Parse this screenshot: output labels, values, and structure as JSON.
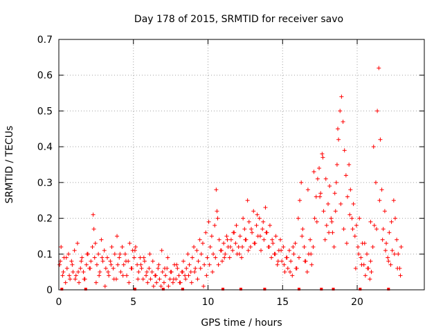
{
  "chart_data": {
    "type": "scatter",
    "title": "Day 178 of 2015, SRMTID for receiver savo",
    "xlabel": "GPS time / hours",
    "ylabel": "SRMTID / TECUs",
    "xlim": [
      0,
      24.5
    ],
    "ylim": [
      0,
      0.7
    ],
    "xticks": [
      0,
      5,
      10,
      15,
      20
    ],
    "yticks": [
      0,
      0.1,
      0.2,
      0.3,
      0.4,
      0.5,
      0.6,
      0.7
    ],
    "xtick_labels": [
      "0",
      "5",
      "10",
      "15",
      "20"
    ],
    "ytick_labels": [
      "0",
      "0.1",
      "0.2",
      "0.3",
      "0.4",
      "0.5",
      "0.6",
      "0.7"
    ],
    "grid": true,
    "legend": "none",
    "marker": "plus",
    "series": [
      {
        "name": "SRMTID",
        "color": "#ff0000",
        "x": [
          0.05,
          0.15,
          0.25,
          0.35,
          0.45,
          0.55,
          0.65,
          0.75,
          0.85,
          0.95,
          1.05,
          1.15,
          1.25,
          1.35,
          1.45,
          1.55,
          1.65,
          1.75,
          1.85,
          1.95,
          2.05,
          2.15,
          2.25,
          2.3,
          2.35,
          2.4,
          2.45,
          2.55,
          2.65,
          2.75,
          2.85,
          2.95,
          3.05,
          3.15,
          3.25,
          3.35,
          3.45,
          3.55,
          3.65,
          3.75,
          3.85,
          3.95,
          4.05,
          4.15,
          4.25,
          4.35,
          4.45,
          4.55,
          4.65,
          4.75,
          4.85,
          4.95,
          5.05,
          5.15,
          5.25,
          5.35,
          5.45,
          5.55,
          5.65,
          5.75,
          5.85,
          5.95,
          6.05,
          6.15,
          6.25,
          6.35,
          6.45,
          6.55,
          6.65,
          6.75,
          6.85,
          6.95,
          7.05,
          7.15,
          7.25,
          7.35,
          7.45,
          7.55,
          7.65,
          7.75,
          7.85,
          7.95,
          8.05,
          8.15,
          8.25,
          8.35,
          8.45,
          8.55,
          8.65,
          8.75,
          8.85,
          8.95,
          9.05,
          9.15,
          9.25,
          9.35,
          9.45,
          9.55,
          9.65,
          9.75,
          9.85,
          9.95,
          10.05,
          10.15,
          10.25,
          10.35,
          10.45,
          10.55,
          10.6,
          10.65,
          10.75,
          10.85,
          10.95,
          11.05,
          11.15,
          11.25,
          11.35,
          11.45,
          11.55,
          11.65,
          11.75,
          11.85,
          11.95,
          12.05,
          12.15,
          12.25,
          12.35,
          12.45,
          12.55,
          12.65,
          12.75,
          12.85,
          12.95,
          13.05,
          13.15,
          13.25,
          13.35,
          13.45,
          13.55,
          13.65,
          13.75,
          13.85,
          13.95,
          14.05,
          14.15,
          14.25,
          14.35,
          14.45,
          14.55,
          14.65,
          14.75,
          14.85,
          14.95,
          15.05,
          15.15,
          15.25,
          15.35,
          15.45,
          15.55,
          15.65,
          15.75,
          15.85,
          15.95,
          16.05,
          16.15,
          16.25,
          16.35,
          16.45,
          16.55,
          16.65,
          16.75,
          16.85,
          16.95,
          17.05,
          17.15,
          17.25,
          17.35,
          17.45,
          17.55,
          17.65,
          17.75,
          17.85,
          17.95,
          18.05,
          18.15,
          18.25,
          18.35,
          18.45,
          18.55,
          18.6,
          18.65,
          18.75,
          18.85,
          18.95,
          19.05,
          19.15,
          19.25,
          19.35,
          19.45,
          19.55,
          19.65,
          19.75,
          19.85,
          19.95,
          20.05,
          20.15,
          20.25,
          20.35,
          20.45,
          20.55,
          20.65,
          20.75,
          20.85,
          20.9,
          20.95,
          21.05,
          21.15,
          21.25,
          21.35,
          21.45,
          21.55,
          21.65,
          21.75,
          21.85,
          21.95,
          22.05,
          22.15,
          22.25,
          22.35,
          22.45,
          22.55,
          22.65,
          22.75,
          22.85,
          22.95,
          0.1,
          0.3,
          0.5,
          0.7,
          0.9,
          1.1,
          1.3,
          1.5,
          1.7,
          1.9,
          2.1,
          2.5,
          2.7,
          2.9,
          3.1,
          3.3,
          3.5,
          3.7,
          3.9,
          4.1,
          4.3,
          4.5,
          4.7,
          4.9,
          5.1,
          5.3,
          5.5,
          5.7,
          5.9,
          6.1,
          6.3,
          6.5,
          6.7,
          6.9,
          7.1,
          7.3,
          7.5,
          7.7,
          7.9,
          8.1,
          8.3,
          8.5,
          8.7,
          8.9,
          9.1,
          9.3,
          9.5,
          9.7,
          9.9,
          10.1,
          10.3,
          10.5,
          10.7,
          10.9,
          11.1,
          11.3,
          11.5,
          11.7,
          11.9,
          12.1,
          12.3,
          12.5,
          12.7,
          12.9,
          13.1,
          13.3,
          13.5,
          13.7,
          13.9,
          14.1,
          14.3,
          14.5,
          14.7,
          14.9,
          15.1,
          15.3,
          15.5,
          15.7,
          15.9,
          16.1,
          16.3,
          16.5,
          16.7,
          16.9,
          17.1,
          17.3,
          17.5,
          17.7,
          17.9,
          18.1,
          18.3,
          18.5,
          18.7,
          18.9,
          19.1,
          19.3,
          19.5,
          19.7,
          19.9,
          20.1,
          20.3,
          20.5,
          20.7,
          20.9,
          21.1,
          21.3,
          21.5,
          21.7,
          21.9,
          22.1,
          22.3,
          22.5,
          22.7,
          22.9
        ],
        "y": [
          0.07,
          0.12,
          0.04,
          0.09,
          0.02,
          0.06,
          0.1,
          0.03,
          0.08,
          0.05,
          0.11,
          0.04,
          0.13,
          0.02,
          0.06,
          0.09,
          0.05,
          0.03,
          0.07,
          0.1,
          0.06,
          0.08,
          0.12,
          0.21,
          0.17,
          0.09,
          0.13,
          0.07,
          0.1,
          0.05,
          0.14,
          0.08,
          0.11,
          0.06,
          0.09,
          0.04,
          0.08,
          0.12,
          0.06,
          0.1,
          0.03,
          0.07,
          0.09,
          0.05,
          0.12,
          0.07,
          0.1,
          0.04,
          0.08,
          0.13,
          0.06,
          0.11,
          0.09,
          0.12,
          0.07,
          0.05,
          0.09,
          0.06,
          0.03,
          0.08,
          0.04,
          0.02,
          0.06,
          0.03,
          0.05,
          0.01,
          0.04,
          0.02,
          0.06,
          0.03,
          0.01,
          0.05,
          0.02,
          0.04,
          0.06,
          0.01,
          0.03,
          0.05,
          0.02,
          0.07,
          0.03,
          0.06,
          0.04,
          0.02,
          0.05,
          0.08,
          0.04,
          0.06,
          0.1,
          0.07,
          0.05,
          0.09,
          0.12,
          0.06,
          0.11,
          0.08,
          0.14,
          0.1,
          0.13,
          0.07,
          0.16,
          0.09,
          0.19,
          0.12,
          0.15,
          0.1,
          0.18,
          0.28,
          0.22,
          0.2,
          0.14,
          0.11,
          0.08,
          0.13,
          0.1,
          0.15,
          0.12,
          0.09,
          0.14,
          0.11,
          0.16,
          0.13,
          0.1,
          0.12,
          0.15,
          0.09,
          0.2,
          0.17,
          0.14,
          0.25,
          0.19,
          0.12,
          0.16,
          0.22,
          0.13,
          0.18,
          0.15,
          0.2,
          0.11,
          0.17,
          0.14,
          0.23,
          0.16,
          0.12,
          0.18,
          0.09,
          0.13,
          0.1,
          0.15,
          0.07,
          0.11,
          0.14,
          0.08,
          0.12,
          0.05,
          0.09,
          0.06,
          0.11,
          0.08,
          0.04,
          0.1,
          0.13,
          0.06,
          0.2,
          0.25,
          0.3,
          0.17,
          0.12,
          0.08,
          0.05,
          0.1,
          0.14,
          0.07,
          0.12,
          0.2,
          0.26,
          0.31,
          0.34,
          0.27,
          0.38,
          0.22,
          0.14,
          0.18,
          0.24,
          0.29,
          0.2,
          0.16,
          0.12,
          0.22,
          0.3,
          0.35,
          0.42,
          0.5,
          0.54,
          0.47,
          0.39,
          0.32,
          0.26,
          0.35,
          0.28,
          0.2,
          0.24,
          0.15,
          0.18,
          0.12,
          0.2,
          0.09,
          0.13,
          0.07,
          0.04,
          0.1,
          0.06,
          0.03,
          0.08,
          0.05,
          0.12,
          0.18,
          0.3,
          0.5,
          0.62,
          0.42,
          0.28,
          0.17,
          0.22,
          0.13,
          0.09,
          0.16,
          0.07,
          0.11,
          0.25,
          0.2,
          0.14,
          0.1,
          0.06,
          0.12,
          0.08,
          0.05,
          0.09,
          0.04,
          0.07,
          0.03,
          0.05,
          0.08,
          0.03,
          0.1,
          0.06,
          0.02,
          0.04,
          0.09,
          0.01,
          0.05,
          0.07,
          0.03,
          0.15,
          0.1,
          0.04,
          0.08,
          0.02,
          0.06,
          0.11,
          0.03,
          0.07,
          0.09,
          0.05,
          0.1,
          0.08,
          0.04,
          0.07,
          0.11,
          0.06,
          0.09,
          0.05,
          0.03,
          0.07,
          0.02,
          0.05,
          0.03,
          0.04,
          0.02,
          0.05,
          0.03,
          0.06,
          0.01,
          0.04,
          0.07,
          0.05,
          0.09,
          0.07,
          0.11,
          0.09,
          0.14,
          0.12,
          0.16,
          0.18,
          0.1,
          0.12,
          0.14,
          0.11,
          0.17,
          0.13,
          0.21,
          0.15,
          0.19,
          0.16,
          0.12,
          0.14,
          0.1,
          0.08,
          0.11,
          0.07,
          0.09,
          0.05,
          0.12,
          0.06,
          0.09,
          0.15,
          0.08,
          0.28,
          0.1,
          0.33,
          0.19,
          0.26,
          0.37,
          0.31,
          0.16,
          0.19,
          0.27,
          0.45,
          0.24,
          0.17,
          0.13,
          0.21,
          0.17,
          0.06,
          0.1,
          0.07,
          0.13,
          0.06,
          0.19,
          0.4,
          0.17,
          0.25,
          0.14,
          0.11,
          0.08,
          0.19,
          0.1,
          0.06,
          0.04
        ]
      }
    ],
    "near_zero_markers_x": [
      0.2,
      1.8,
      5.1,
      7.0,
      8.3,
      11.0,
      12.2,
      13.8,
      16.1,
      17.6,
      18.4,
      20.2,
      22.1
    ]
  }
}
